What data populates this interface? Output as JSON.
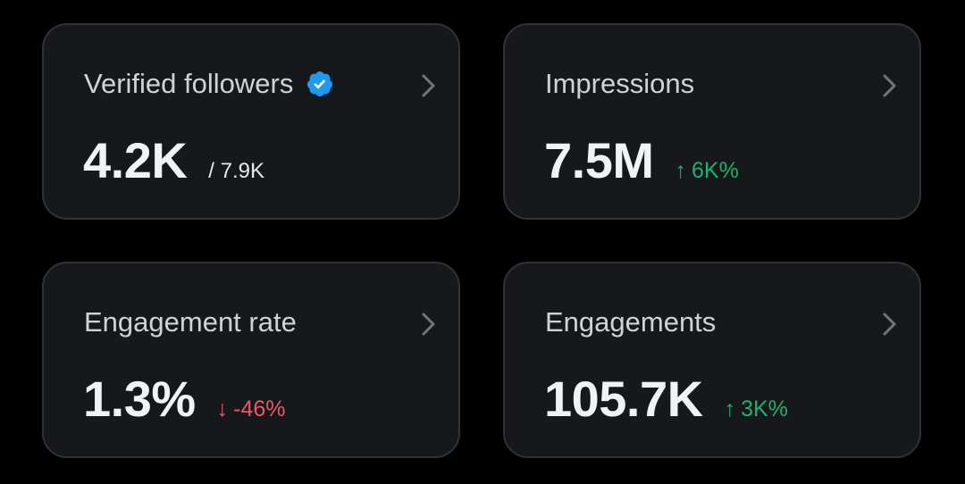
{
  "colors": {
    "background": "#000000",
    "card_background": "#16181c",
    "card_border": "#2f3336",
    "positive": "#1fb16f",
    "negative": "#ef5667",
    "verified_badge": "#1d9bf0"
  },
  "cards": [
    {
      "title": "Verified followers",
      "title_icon": "verified-badge-icon",
      "value": "4.2K",
      "total": "/ 7.9K",
      "nav_icon": "chevron-right-icon"
    },
    {
      "title": "Impressions",
      "value": "7.5M",
      "change": {
        "direction": "up",
        "arrow": "↑",
        "text": "6K%"
      },
      "nav_icon": "chevron-right-icon"
    },
    {
      "title": "Engagement rate",
      "value": "1.3%",
      "change": {
        "direction": "down",
        "arrow": "↓",
        "text": "-46%"
      },
      "nav_icon": "chevron-right-icon"
    },
    {
      "title": "Engagements",
      "value": "105.7K",
      "change": {
        "direction": "up",
        "arrow": "↑",
        "text": "3K%"
      },
      "nav_icon": "chevron-right-icon"
    }
  ]
}
